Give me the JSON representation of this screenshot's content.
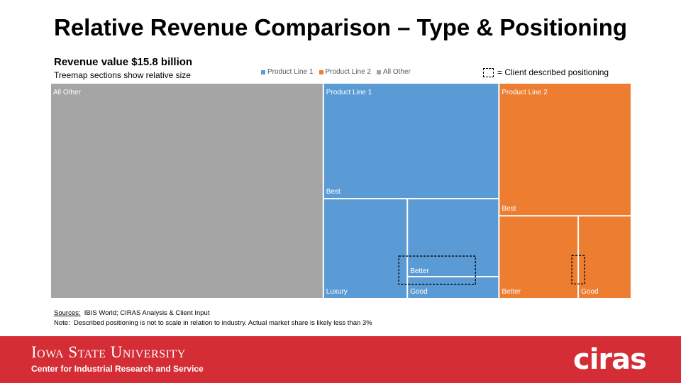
{
  "slide": {
    "title": "Relative Revenue Comparison – Type & Positioning",
    "subtitle": "Revenue value $15.8 billion",
    "subsubtitle": "Treemap sections show relative size",
    "client_legend": "= Client  described positioning",
    "sources_label": "Sources:",
    "sources_text": "IBIS World; CIRAS Analysis & Client Input",
    "note_label": "Note:",
    "note_text": "Described positioning is not to scale in relation to industry.  Actual market share is likely less than 3%"
  },
  "footer": {
    "university": "Iowa State University",
    "center": "Center for Industrial Research and Service",
    "logo": "ciras"
  },
  "colors": {
    "product_line_1": "#5b9bd5",
    "product_line_2": "#ed7d31",
    "all_other": "#a5a5a5",
    "footer_red": "#d42d36"
  },
  "chart_data": {
    "type": "treemap",
    "legend": [
      {
        "name": "Product Line 1",
        "color": "#5b9bd5"
      },
      {
        "name": "Product Line 2",
        "color": "#ed7d31"
      },
      {
        "name": "All Other",
        "color": "#a5a5a5"
      }
    ],
    "legend_position": "top",
    "groups": [
      {
        "name": "All Other",
        "color": "#a5a5a5",
        "share": 0.471,
        "segments": [
          {
            "label": "",
            "share": 1.0
          }
        ]
      },
      {
        "name": "Product Line 1",
        "color": "#5b9bd5",
        "share": 0.303,
        "segments": [
          {
            "label": "Best",
            "share": 0.54
          },
          {
            "label": "Luxury",
            "share": 0.22
          },
          {
            "label": "Better",
            "share": 0.19
          },
          {
            "label": "Good",
            "share": 0.05
          }
        ]
      },
      {
        "name": "Product Line 2",
        "color": "#ed7d31",
        "share": 0.226,
        "segments": [
          {
            "label": "Best",
            "share": 0.62
          },
          {
            "label": "Better",
            "share": 0.23
          },
          {
            "label": "Good",
            "share": 0.15
          }
        ]
      }
    ],
    "client_positioning": [
      {
        "group": "Product Line 1",
        "between": [
          "Better",
          "Good"
        ]
      },
      {
        "group": "Product Line 2",
        "between": [
          "Better",
          "Good"
        ]
      }
    ]
  }
}
